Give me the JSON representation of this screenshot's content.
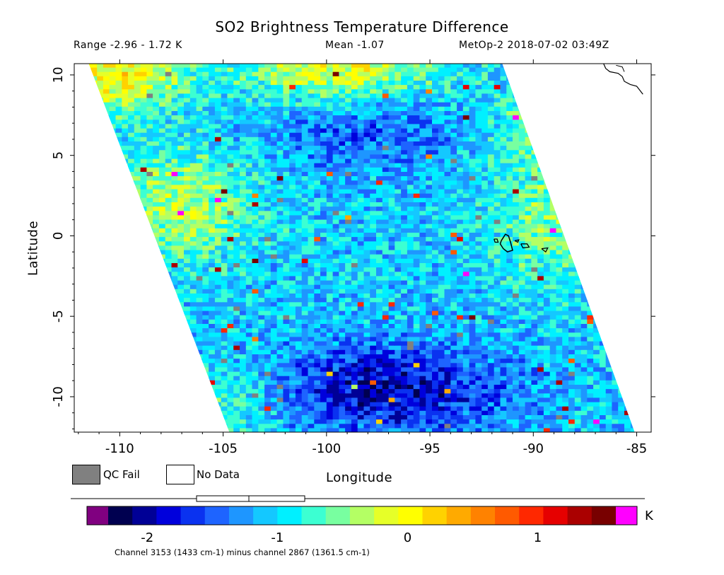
{
  "title": "SO2 Brightness Temperature Difference",
  "header": {
    "range": "Range -2.96 - 1.72 K",
    "mean": "Mean -1.07",
    "satellite": "MetOp-2 2018-07-02 03:49Z"
  },
  "legend": {
    "qc_fail_label": "QC Fail",
    "qc_fail_color": "#808080",
    "no_data_label": "No Data",
    "no_data_color": "#ffffff"
  },
  "colorbar": {
    "unit": "K",
    "caption": "Channel 3153 (1433 cm-1) minus channel 2867 (1361.5 cm-1)",
    "min": -2.3,
    "max": 1.6,
    "tick_values": [
      -2,
      -1,
      0,
      1
    ],
    "tick_labels": [
      "-2",
      "-1",
      "0",
      "1"
    ],
    "under_color": "#800080",
    "over_color": "#ff00ff",
    "colors": [
      "#000050",
      "#000096",
      "#0000dc",
      "#0a32f0",
      "#1e64ff",
      "#1e96ff",
      "#14c8ff",
      "#00f0ff",
      "#3cffd2",
      "#78ffa0",
      "#b4ff64",
      "#e6ff28",
      "#ffff00",
      "#ffd200",
      "#ffaa00",
      "#ff8200",
      "#ff5a00",
      "#ff2800",
      "#e60000",
      "#aa0000",
      "#780000"
    ]
  },
  "chart_data": {
    "type": "heatmap",
    "title": "SO2 Brightness Temperature Difference",
    "xlabel": "Longitude",
    "ylabel": "Latitude",
    "xlim": [
      -112.2,
      -84.3
    ],
    "ylim": [
      -12.2,
      10.7
    ],
    "x_ticks": [
      -110,
      -105,
      -100,
      -95,
      -90,
      -85
    ],
    "y_ticks": [
      -10,
      -5,
      0,
      5,
      10
    ],
    "x_tick_labels": [
      "-110",
      "-105",
      "-100",
      "-95",
      "-90",
      "-85"
    ],
    "y_tick_labels": [
      "-10",
      "-5",
      "0",
      "5",
      "10"
    ],
    "units": "K",
    "value_range": [
      -2.96,
      1.72
    ],
    "mean": -1.07,
    "swath": {
      "lat_top": 10.7,
      "lat_bottom": -12.2,
      "west_lon_top": -111.5,
      "west_lon_bottom": -104.7,
      "east_lon_top": -91.5,
      "east_lon_bottom": -85.1
    },
    "features": [
      {
        "name": "Galapagos Islands",
        "lon": -91.0,
        "lat": -0.5
      },
      {
        "name": "Central America coast",
        "lon": -86.0,
        "lat": 10.0
      }
    ]
  }
}
